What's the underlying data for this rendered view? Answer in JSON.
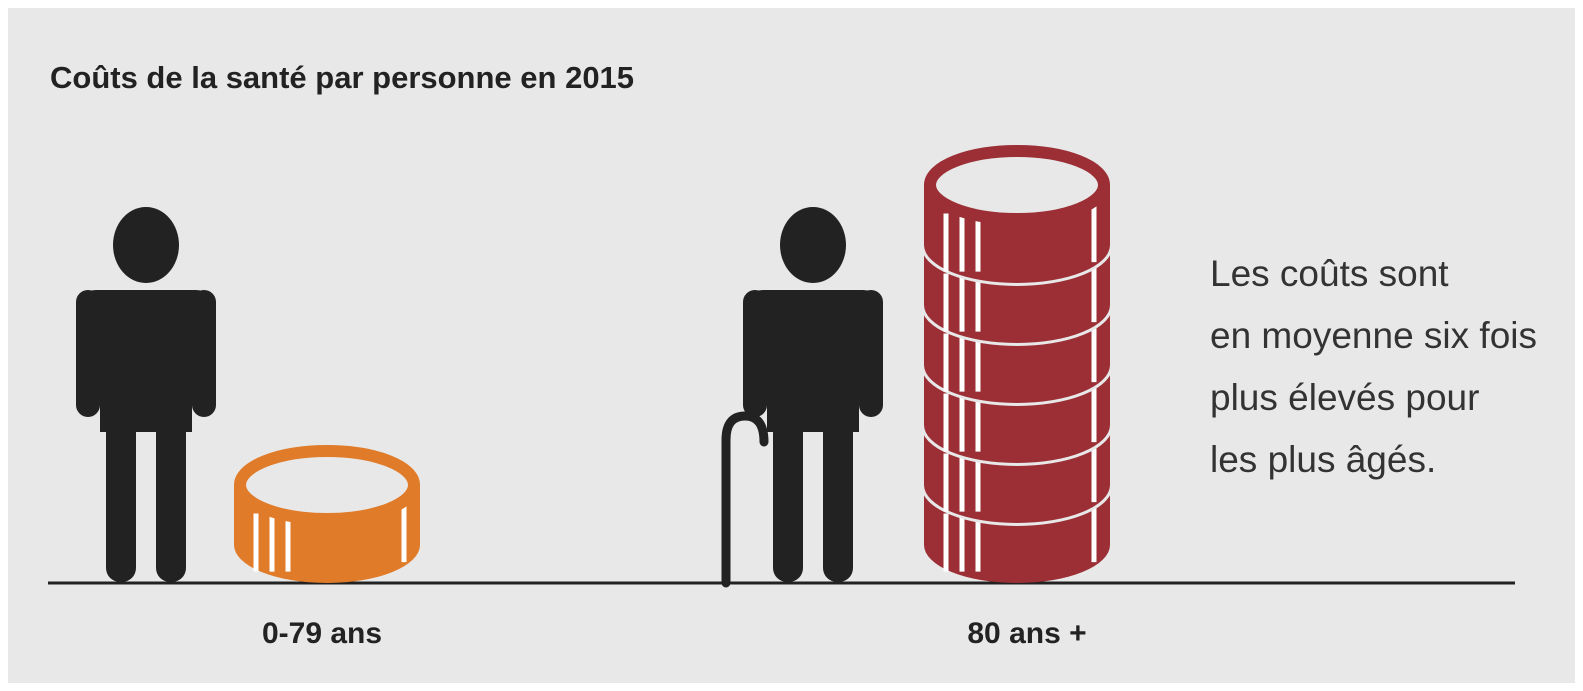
{
  "chart_data": {
    "type": "pictograph",
    "title": "Coûts de la santé par personne en 2015",
    "categories": [
      "0-79 ans",
      "80 ans +"
    ],
    "values": [
      1,
      6
    ],
    "colors": [
      "#e07b2a",
      "#9b2f35"
    ],
    "annotation": [
      "Les coûts sont",
      "en moyenne six fois",
      "plus élevés pour",
      "les plus âgés."
    ]
  }
}
